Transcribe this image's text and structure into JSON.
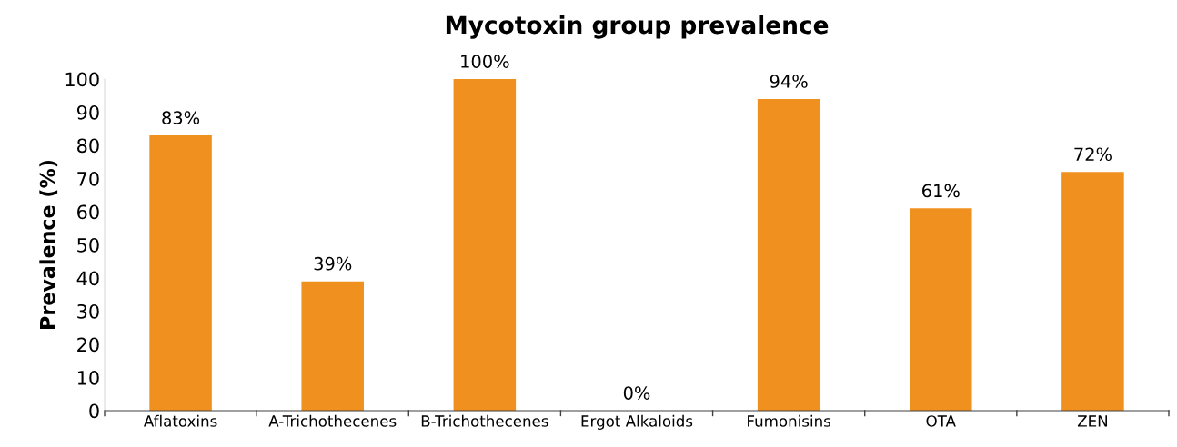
{
  "chart_data": {
    "type": "bar",
    "title": "Mycotoxin group prevalence",
    "ylabel": "Prevalence (%)",
    "categories": [
      "Aflatoxins",
      "A-Trichothecenes",
      "B-Trichothecenes",
      "Ergot Alkaloids",
      "Fumonisins",
      "OTA",
      "ZEN"
    ],
    "values": [
      83,
      39,
      100,
      0,
      94,
      61,
      72
    ],
    "value_labels": [
      "83%",
      "39%",
      "100%",
      "0%",
      "94%",
      "61%",
      "72%"
    ],
    "color": "#f0901f",
    "ylim": [
      0,
      100
    ],
    "yticks": [
      0,
      10,
      20,
      30,
      40,
      50,
      60,
      70,
      80,
      90,
      100
    ],
    "grid": false,
    "legend": false
  }
}
